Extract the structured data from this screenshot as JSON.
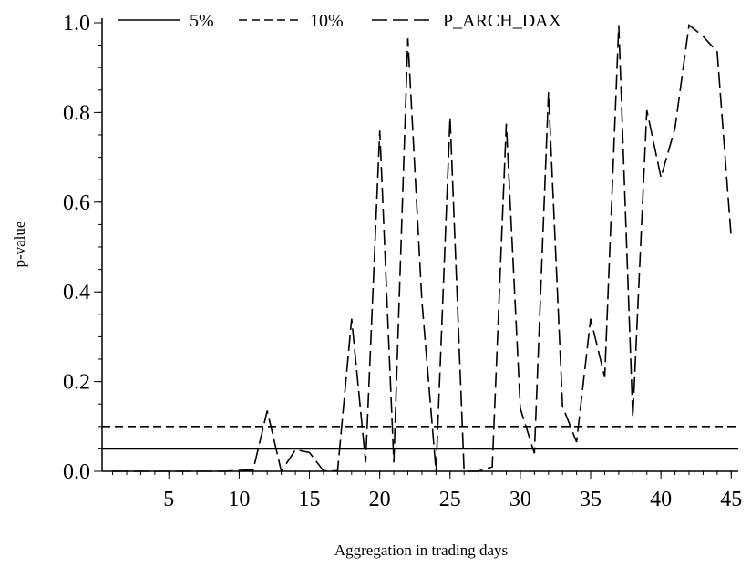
{
  "chart_data": {
    "type": "line",
    "xlabel": "Aggregation in trading days",
    "ylabel": "p-value",
    "xlim": [
      0.25,
      45.5
    ],
    "ylim": [
      0,
      1
    ],
    "x_ticks": [
      5,
      10,
      15,
      20,
      25,
      30,
      35,
      40,
      45
    ],
    "x_tick_labels": [
      "5",
      "10",
      "15",
      "20",
      "25",
      "30",
      "35",
      "40",
      "45"
    ],
    "y_ticks": [
      0,
      0.2,
      0.4,
      0.6,
      0.8,
      1.0
    ],
    "y_tick_labels": [
      "0.0",
      "0.2",
      "0.4",
      "0.6",
      "0.8",
      "1.0"
    ],
    "legend_position": "top",
    "grid": false,
    "series": [
      {
        "name": "5%",
        "style": "solid",
        "color": "#000000",
        "x": [
          0.25,
          45.5
        ],
        "values": [
          0.05,
          0.05
        ]
      },
      {
        "name": "10%",
        "style": "short-dash",
        "color": "#000000",
        "x": [
          0.25,
          45.5
        ],
        "values": [
          0.1,
          0.1
        ]
      },
      {
        "name": "P_ARCH_DAX",
        "style": "long-dash",
        "color": "#000000",
        "x": [
          1,
          2,
          3,
          4,
          5,
          6,
          7,
          8,
          9,
          10,
          11,
          12,
          13,
          14,
          15,
          16,
          17,
          18,
          19,
          20,
          21,
          22,
          23,
          24,
          25,
          26,
          27,
          28,
          29,
          30,
          31,
          32,
          33,
          34,
          35,
          36,
          37,
          38,
          39,
          40,
          41,
          42,
          43,
          44,
          45
        ],
        "values": [
          0.0,
          0.0,
          0.0,
          0.0,
          0.0,
          0.0,
          0.0,
          0.0,
          0.0,
          0.002,
          0.003,
          0.135,
          0.0,
          0.048,
          0.042,
          0.001,
          0.001,
          0.34,
          0.02,
          0.76,
          0.02,
          0.965,
          0.38,
          0.0,
          0.79,
          0.0,
          0.0,
          0.01,
          0.775,
          0.14,
          0.04,
          0.845,
          0.145,
          0.065,
          0.34,
          0.21,
          0.995,
          0.12,
          0.805,
          0.655,
          0.765,
          0.995,
          0.97,
          0.935,
          0.52
        ]
      }
    ]
  }
}
